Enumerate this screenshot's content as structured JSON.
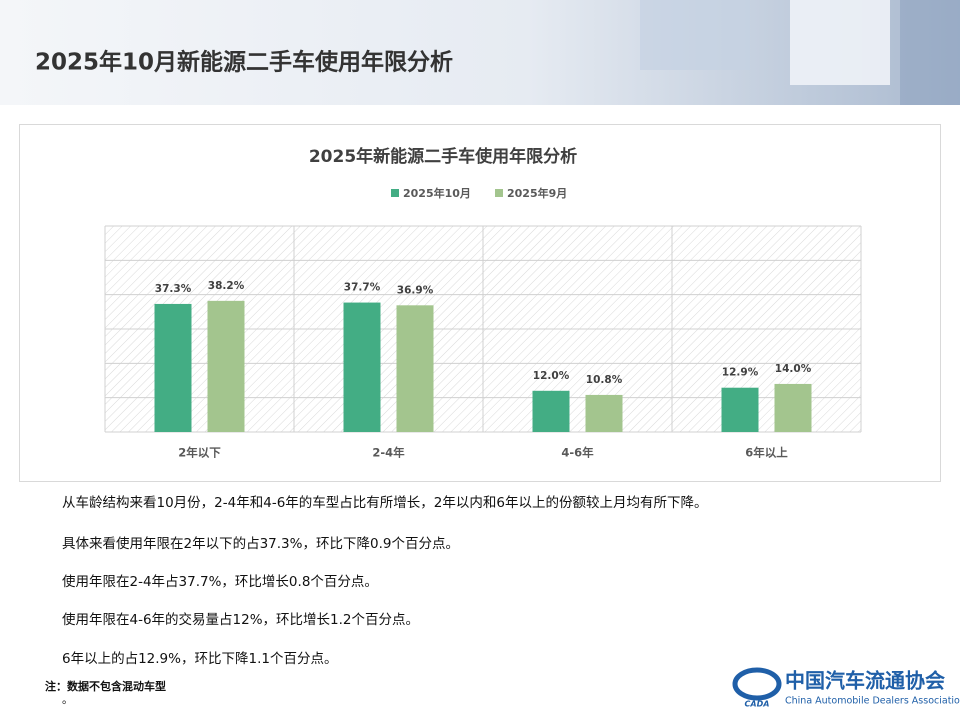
{
  "header": {
    "title": "2025年10月新能源二手车使用年限分析"
  },
  "chart_data": {
    "type": "bar",
    "title": "2025年新能源二手车使用年限分析",
    "categories": [
      "2年以下",
      "2-4年",
      "4-6年",
      "6年以上"
    ],
    "series": [
      {
        "name": "2025年10月",
        "color": "#43ad84",
        "values": [
          37.3,
          37.7,
          12.0,
          12.9
        ],
        "value_labels": [
          "37.3%",
          "37.7%",
          "12.0%",
          "12.9%"
        ]
      },
      {
        "name": "2025年9月",
        "color": "#a3c58e",
        "values": [
          38.2,
          36.9,
          10.8,
          14.0
        ],
        "value_labels": [
          "38.2%",
          "36.9%",
          "10.8%",
          "14.0%"
        ]
      }
    ],
    "ylim": [
      0,
      60
    ],
    "grid": true,
    "legend": "top"
  },
  "text": {
    "paragraphs": [
      "从车龄结构来看10月份，2-4年和4-6年的车型占比有所增长，2年以内和6年以上的份额较上月均有所下降。",
      "具体来看使用年限在2年以下的占37.3%，环比下降0.9个百分点。",
      "使用年限在2-4年占37.7%，环比增长0.8个百分点。",
      "使用年限在4-6年的交易量占12%，环比增长1.2个百分点。",
      "6年以上的占12.9%，环比下降1.1个百分点。"
    ]
  },
  "footnote": {
    "lines": [
      "注：数据不包含混动车型",
      "。"
    ]
  },
  "logo": {
    "name": "中国汽车流通协会",
    "english": "China Automobile Dealers Association",
    "mark": "CADA"
  }
}
